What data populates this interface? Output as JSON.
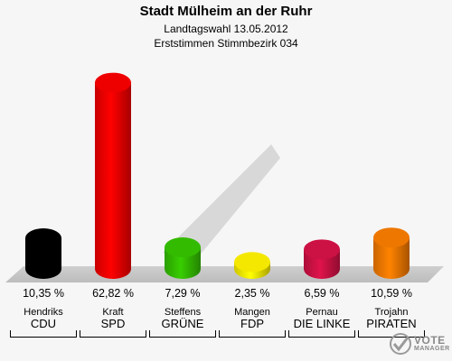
{
  "header": {
    "title": "Stadt Mülheim an der Ruhr",
    "subtitle": "Landtagswahl 13.05.2012",
    "subtitle2": "Erststimmen Stimmbezirk 034"
  },
  "chart_data": {
    "type": "bar",
    "title": "Stadt Mülheim an der Ruhr",
    "categories": [
      "CDU",
      "SPD",
      "GRÜNE",
      "FDP",
      "DIE LINKE",
      "PIRATEN"
    ],
    "candidates": [
      "Hendriks",
      "Kraft",
      "Steffens",
      "Mangen",
      "Pernau",
      "Trojahn"
    ],
    "values": [
      10.35,
      62.82,
      7.29,
      2.35,
      6.59,
      10.59
    ],
    "value_labels": [
      "10,35 %",
      "62,82 %",
      "7,29 %",
      "2,35 %",
      "6,59 %",
      "10,59 %"
    ],
    "colors": [
      "#000000",
      "#ee0000",
      "#33bb00",
      "#f5e800",
      "#cc1144",
      "#ee7700"
    ],
    "ylim": [
      0,
      70
    ],
    "grid": false
  },
  "logo": {
    "line1": "VOTE",
    "line2": "MANAGER"
  }
}
